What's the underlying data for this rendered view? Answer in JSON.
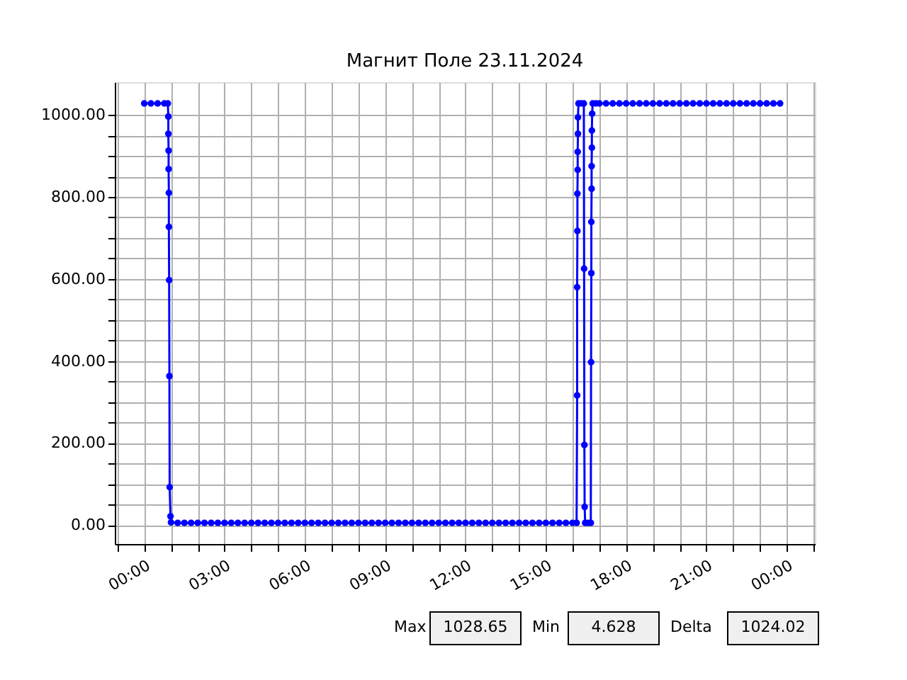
{
  "chart_data": {
    "type": "line",
    "title": "Магнит Поле 23.11.2024",
    "xlim": [
      -1.1,
      25.05
    ],
    "ylim": [
      -46.6,
      1079.9
    ],
    "xticks": [
      {
        "value": -1,
        "label": null
      },
      {
        "value": 0,
        "label": "00:00"
      },
      {
        "value": 1,
        "label": null
      },
      {
        "value": 2,
        "label": null
      },
      {
        "value": 3,
        "label": "03:00"
      },
      {
        "value": 4,
        "label": null
      },
      {
        "value": 5,
        "label": null
      },
      {
        "value": 6,
        "label": "06:00"
      },
      {
        "value": 7,
        "label": null
      },
      {
        "value": 8,
        "label": null
      },
      {
        "value": 9,
        "label": "09:00"
      },
      {
        "value": 10,
        "label": null
      },
      {
        "value": 11,
        "label": null
      },
      {
        "value": 12,
        "label": "12:00"
      },
      {
        "value": 13,
        "label": null
      },
      {
        "value": 14,
        "label": null
      },
      {
        "value": 15,
        "label": "15:00"
      },
      {
        "value": 16,
        "label": null
      },
      {
        "value": 17,
        "label": null
      },
      {
        "value": 18,
        "label": "18:00"
      },
      {
        "value": 19,
        "label": null
      },
      {
        "value": 20,
        "label": null
      },
      {
        "value": 21,
        "label": "21:00"
      },
      {
        "value": 22,
        "label": null
      },
      {
        "value": 23,
        "label": null
      },
      {
        "value": 24,
        "label": "00:00"
      },
      {
        "value": 25,
        "label": null
      }
    ],
    "yticks": [
      {
        "value": 0,
        "label": "0.00"
      },
      {
        "value": 50,
        "label": null
      },
      {
        "value": 100,
        "label": null
      },
      {
        "value": 150,
        "label": null
      },
      {
        "value": 200,
        "label": "200.00"
      },
      {
        "value": 250,
        "label": null
      },
      {
        "value": 300,
        "label": null
      },
      {
        "value": 350,
        "label": null
      },
      {
        "value": 400,
        "label": "400.00"
      },
      {
        "value": 450,
        "label": null
      },
      {
        "value": 500,
        "label": null
      },
      {
        "value": 550,
        "label": null
      },
      {
        "value": 600,
        "label": "600.00"
      },
      {
        "value": 650,
        "label": null
      },
      {
        "value": 700,
        "label": null
      },
      {
        "value": 750,
        "label": null
      },
      {
        "value": 800,
        "label": "800.00"
      },
      {
        "value": 850,
        "label": null
      },
      {
        "value": 900,
        "label": null
      },
      {
        "value": 950,
        "label": null
      },
      {
        "value": 1000,
        "label": "1000.00"
      }
    ],
    "grid": true,
    "marker": "circle",
    "line_style": "solid",
    "annotations": [
      "Max",
      "1028.65",
      "Min",
      "4.628",
      "Delta",
      "1024.02"
    ],
    "series": [
      {
        "color": "#0000ff",
        "x": [
          0,
          0.25,
          0.5,
          0.75,
          0.88,
          0.9,
          0.9,
          0.91,
          0.91,
          0.92,
          0.92,
          0.93,
          0.94,
          0.95,
          0.98,
          1.0,
          1.25,
          1.5,
          1.75,
          2,
          2.25,
          2.5,
          2.75,
          3,
          3.25,
          3.5,
          3.75,
          4,
          4.25,
          4.5,
          4.75,
          5,
          5.25,
          5.5,
          5.75,
          6,
          6.25,
          6.5,
          6.75,
          7,
          7.25,
          7.5,
          7.75,
          8,
          8.25,
          8.5,
          8.75,
          9,
          9.25,
          9.5,
          9.75,
          10,
          10.25,
          10.5,
          10.75,
          11,
          11.25,
          11.5,
          11.75,
          12,
          12.25,
          12.5,
          12.75,
          13,
          13.25,
          13.5,
          13.75,
          14,
          14.25,
          14.5,
          14.75,
          15,
          15.25,
          15.5,
          15.75,
          16,
          16.15,
          16.17,
          16.17,
          16.18,
          16.18,
          16.19,
          16.19,
          16.2,
          16.2,
          16.22,
          16.32,
          16.42,
          16.43,
          16.44,
          16.45,
          16.47,
          16.58,
          16.68,
          16.69,
          16.7,
          16.7,
          16.71,
          16.71,
          16.72,
          16.72,
          16.73,
          16.75,
          16.87,
          17,
          17.25,
          17.5,
          17.75,
          18,
          18.25,
          18.5,
          18.75,
          19,
          19.25,
          19.5,
          19.75,
          20,
          20.25,
          20.5,
          20.75,
          21,
          21.25,
          21.5,
          21.75,
          22,
          22.25,
          22.5,
          22.75,
          23,
          23.25,
          23.5,
          23.75
        ],
        "values": [
          1028,
          1028,
          1028,
          1028,
          1028,
          996,
          954,
          913,
          868,
          810,
          727,
          597,
          363,
          92,
          21,
          6,
          5,
          5,
          5,
          5,
          5,
          5,
          5,
          5,
          5,
          5,
          5,
          5,
          5,
          5,
          5,
          5,
          5,
          5,
          5,
          5,
          5,
          5,
          5,
          5,
          5,
          5,
          5,
          5,
          5,
          5,
          5,
          5,
          5,
          5,
          5,
          5,
          5,
          5,
          5,
          5,
          5,
          5,
          5,
          5,
          5,
          5,
          5,
          5,
          5,
          5,
          5,
          5,
          5,
          5,
          5,
          5,
          5,
          5,
          5,
          5,
          5,
          316,
          580,
          717,
          808,
          866,
          910,
          954,
          994,
          1028,
          1028,
          1028,
          625,
          195,
          44,
          5,
          5,
          5,
          397,
          614,
          739,
          820,
          875,
          920,
          962,
          1003,
          1028,
          1028,
          1028,
          1028,
          1028,
          1028,
          1028,
          1028,
          1028,
          1028,
          1028,
          1028,
          1028,
          1028,
          1028,
          1028,
          1028,
          1028,
          1028,
          1028,
          1028,
          1028,
          1028,
          1028,
          1028,
          1028,
          1028,
          1028,
          1028,
          1028
        ]
      }
    ]
  }
}
